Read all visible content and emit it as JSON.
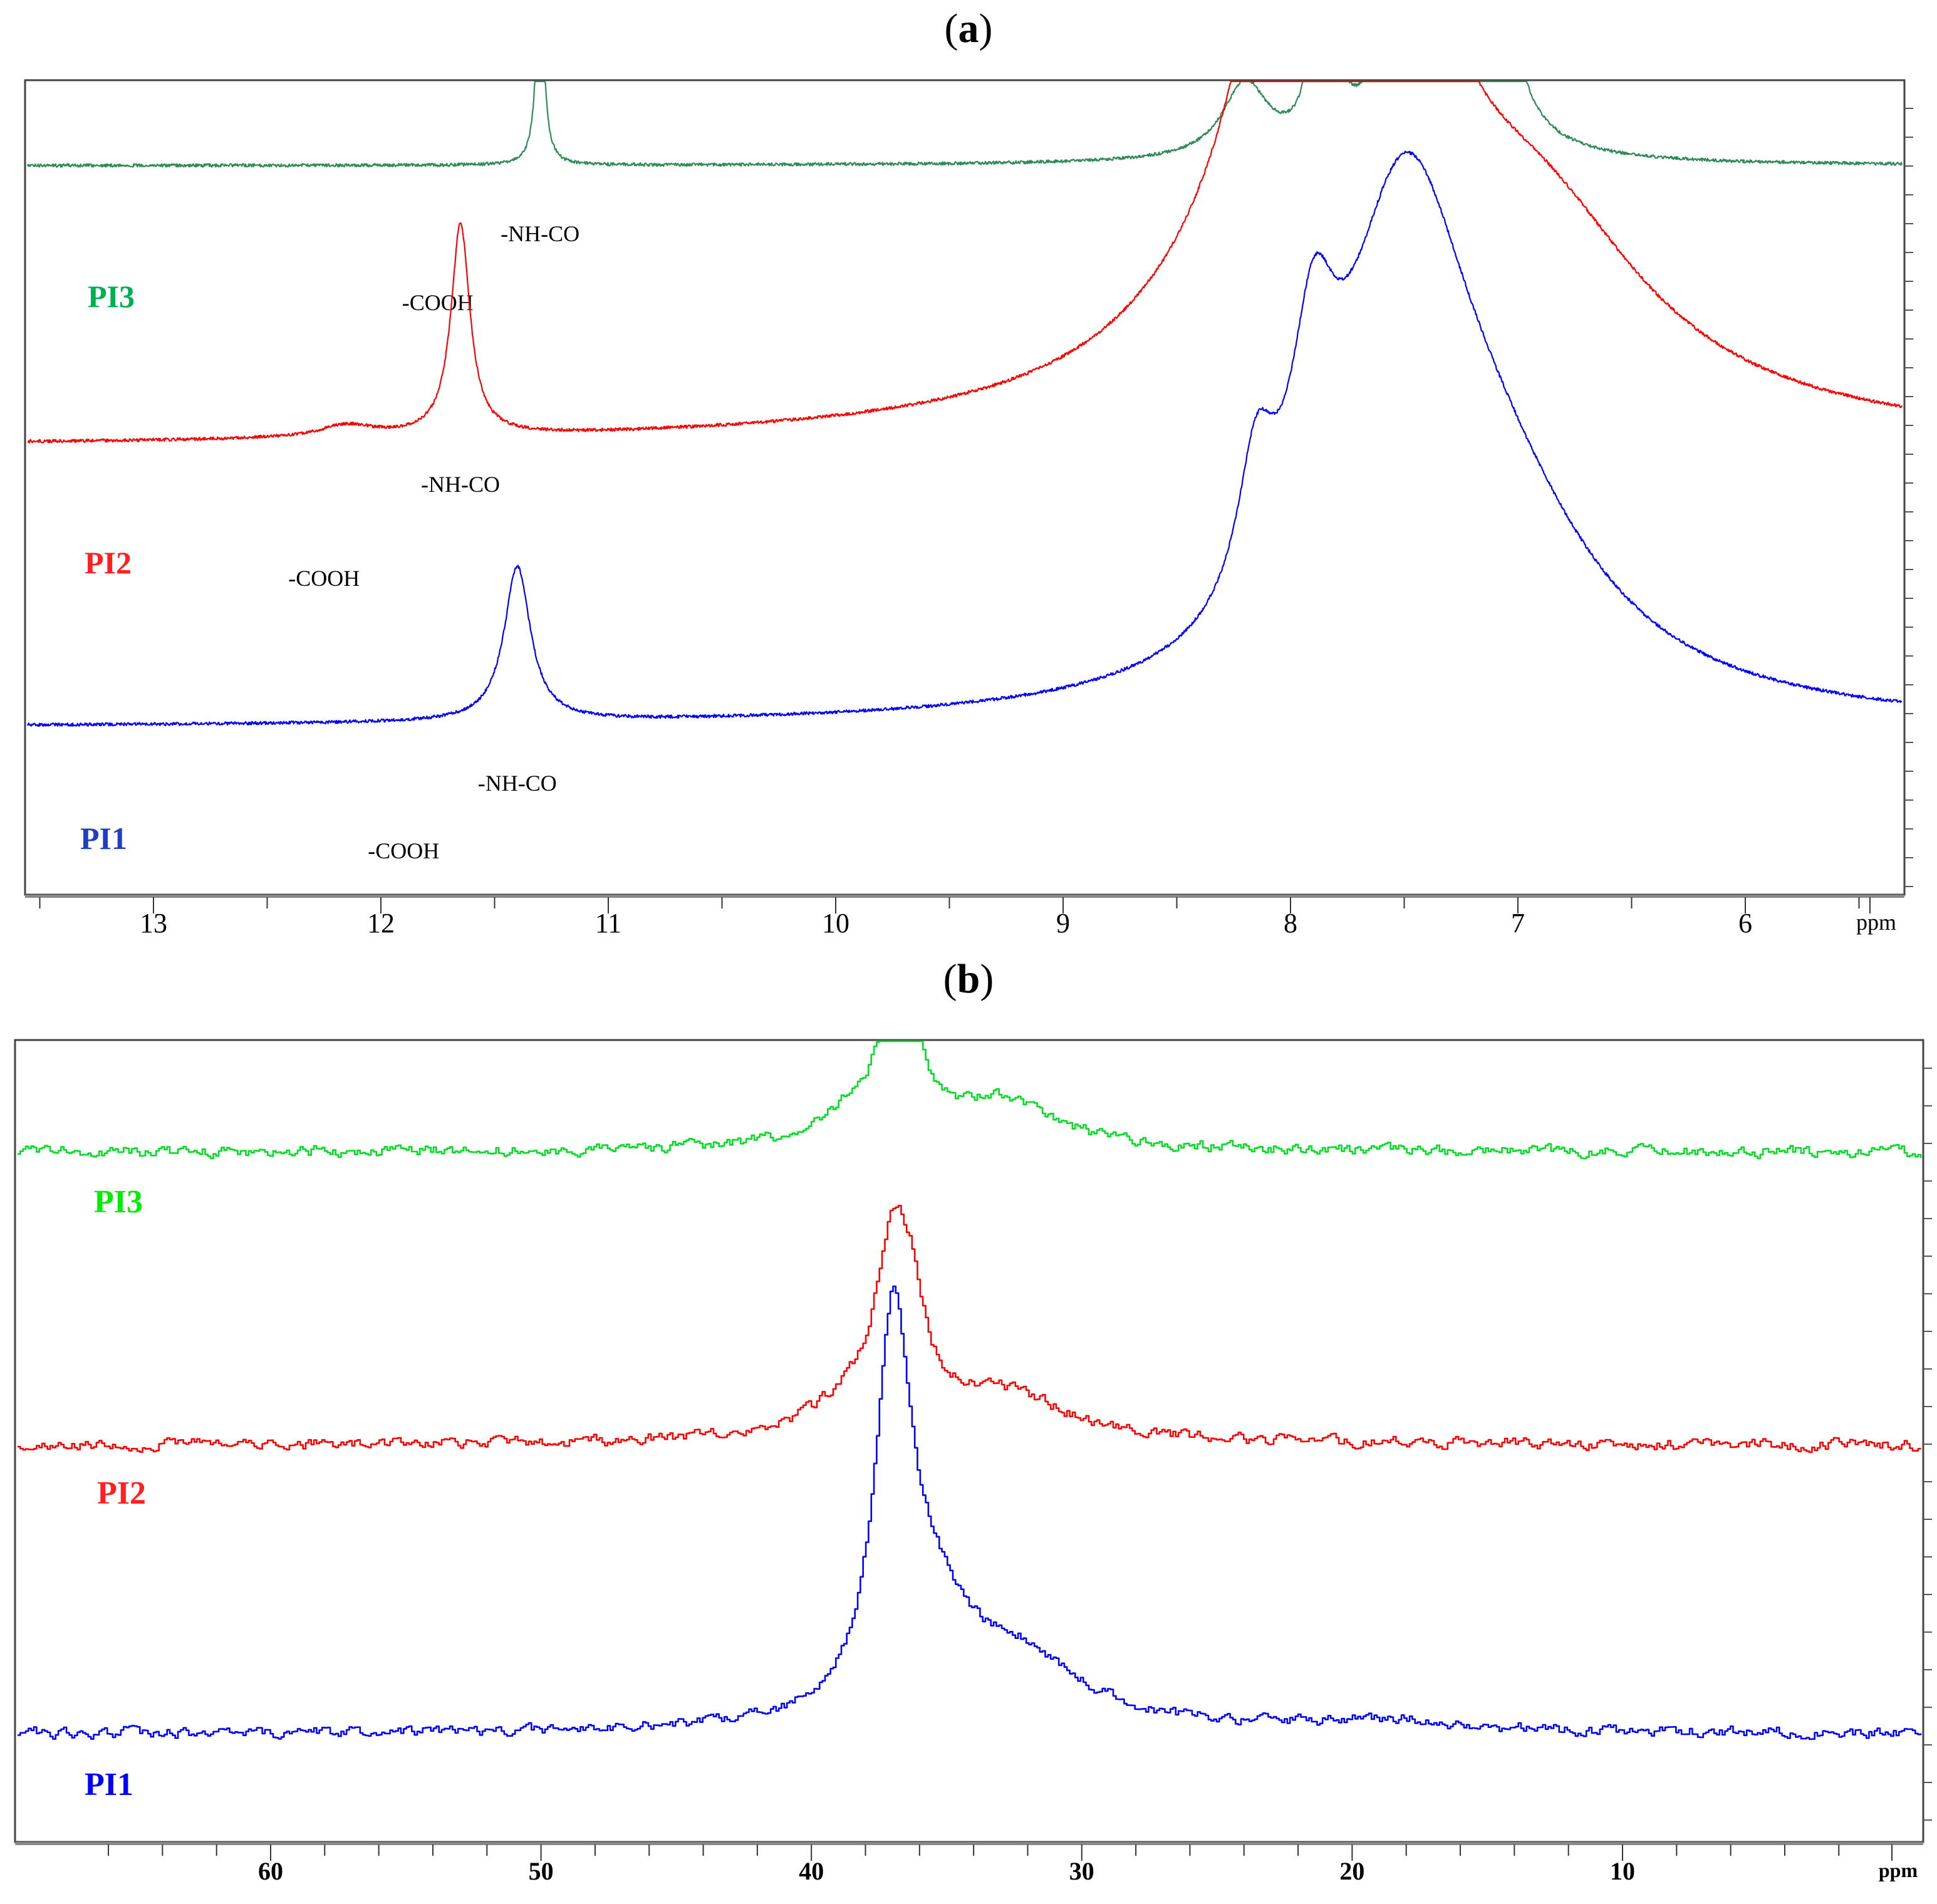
{
  "figure": {
    "panels": [
      {
        "id": "a",
        "title_open": "(",
        "title_letter": "a",
        "title_close": ")"
      },
      {
        "id": "b",
        "title_open": "(",
        "title_letter": "b",
        "title_close": ")"
      }
    ]
  },
  "chart_data": [
    {
      "type": "line",
      "panel": "a",
      "title": "(a)",
      "xlabel": "ppm",
      "ylabel": "",
      "x_reversed": true,
      "xlim": [
        13.55,
        5.5
      ],
      "xticks": [
        13,
        12,
        11,
        10,
        9,
        8,
        7,
        6
      ],
      "xtick_labels": [
        "13",
        "12",
        "11",
        "10",
        "9",
        "8",
        "7",
        "6"
      ],
      "grid": false,
      "stacked_offsets": true,
      "series": [
        {
          "name": "PI3",
          "color": "#2e8b57",
          "label_color": "#00b050",
          "baseline_frac": 0.895,
          "peaks": [
            {
              "ppm": 11.3,
              "height": 0.24,
              "width": 0.02
            },
            {
              "ppm": 8.2,
              "height": 0.09,
              "width": 0.12
            },
            {
              "ppm": 7.87,
              "height": 0.42,
              "width": 0.025
            },
            {
              "ppm": 7.84,
              "height": 0.4,
              "width": 0.025
            },
            {
              "ppm": 7.4,
              "height": 0.95,
              "width": 0.08
            },
            {
              "ppm": 7.37,
              "height": 0.8,
              "width": 0.02
            },
            {
              "ppm": 7.3,
              "height": 0.45,
              "width": 0.02
            },
            {
              "ppm": 7.23,
              "height": 0.5,
              "width": 0.02
            },
            {
              "ppm": 7.13,
              "height": 0.8,
              "width": 0.05
            }
          ],
          "annotations": [
            {
              "text": "-NH-CO",
              "ppm": 11.3
            },
            {
              "text": "-COOH",
              "ppm": 11.75
            }
          ]
        },
        {
          "name": "PI2",
          "color": "#ff0000",
          "label_color": "#ff2020",
          "baseline_frac": 0.55,
          "peaks": [
            {
              "ppm": 11.65,
              "height": 0.26,
              "width": 0.05
            },
            {
              "ppm": 12.15,
              "height": 0.015,
              "width": 0.15
            },
            {
              "ppm": 7.8,
              "height": 0.75,
              "width": 0.45
            },
            {
              "ppm": 8.05,
              "height": 0.28,
              "width": 0.1
            },
            {
              "ppm": 7.4,
              "height": 0.15,
              "width": 0.1
            },
            {
              "ppm": 6.9,
              "height": 0.2,
              "width": 0.6
            }
          ],
          "annotations": [
            {
              "text": "-NH-CO",
              "ppm": 11.65
            },
            {
              "text": "-COOH",
              "ppm": 12.25
            }
          ]
        },
        {
          "name": "PI1",
          "color": "#0000ff",
          "label_color": "#1f3fbf",
          "baseline_frac": 0.205,
          "peaks": [
            {
              "ppm": 11.4,
              "height": 0.19,
              "width": 0.07
            },
            {
              "ppm": 7.5,
              "height": 0.55,
              "width": 0.35
            },
            {
              "ppm": 7.9,
              "height": 0.25,
              "width": 0.12
            },
            {
              "ppm": 8.15,
              "height": 0.17,
              "width": 0.1
            },
            {
              "ppm": 7.1,
              "height": 0.2,
              "width": 0.55
            }
          ],
          "annotations": [
            {
              "text": "-NH-CO",
              "ppm": 11.4
            },
            {
              "text": "-COOH",
              "ppm": 11.9
            }
          ]
        }
      ]
    },
    {
      "type": "line",
      "panel": "b",
      "title": "(b)",
      "xlabel": "ppm",
      "ylabel": "",
      "x_reversed": true,
      "xlim": [
        68.6,
        1.0
      ],
      "xticks": [
        60,
        50,
        40,
        30,
        20,
        10
      ],
      "xtick_labels": [
        "60",
        "50",
        "40",
        "30",
        "20",
        "10"
      ],
      "grid": false,
      "stacked_offsets": true,
      "series": [
        {
          "name": "PI3",
          "color": "#00dd22",
          "label_color": "#00ee00",
          "baseline_frac": 0.86,
          "peaks": [
            {
              "ppm": 37.0,
              "height": 0.13,
              "width": 0.9
            },
            {
              "ppm": 36.2,
              "height": 0.06,
              "width": 0.5
            },
            {
              "ppm": 33.0,
              "height": 0.06,
              "width": 2.5
            },
            {
              "ppm": 38.5,
              "height": 0.03,
              "width": 2.0
            }
          ]
        },
        {
          "name": "PI2",
          "color": "#ff0000",
          "label_color": "#ff2020",
          "baseline_frac": 0.495,
          "peaks": [
            {
              "ppm": 37.0,
              "height": 0.22,
              "width": 0.8
            },
            {
              "ppm": 36.3,
              "height": 0.08,
              "width": 0.6
            },
            {
              "ppm": 33.0,
              "height": 0.06,
              "width": 3.0
            },
            {
              "ppm": 38.5,
              "height": 0.035,
              "width": 2.0
            }
          ]
        },
        {
          "name": "PI1",
          "color": "#0000ff",
          "label_color": "#0000ff",
          "baseline_frac": 0.135,
          "peaks": [
            {
              "ppm": 37.0,
              "height": 0.48,
              "width": 0.8
            },
            {
              "ppm": 35.5,
              "height": 0.1,
              "width": 1.5
            },
            {
              "ppm": 32.5,
              "height": 0.09,
              "width": 3.0
            },
            {
              "ppm": 19.0,
              "height": 0.015,
              "width": 3.0
            }
          ]
        }
      ]
    }
  ]
}
